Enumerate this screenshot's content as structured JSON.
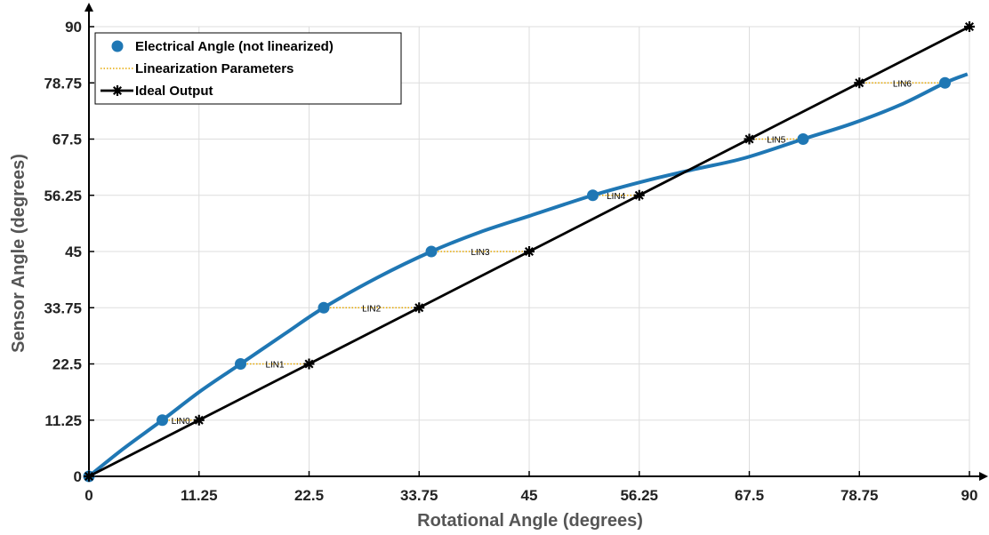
{
  "chart_data": {
    "type": "line",
    "xlabel": "Rotational Angle (degrees)",
    "ylabel": "Sensor Angle (degrees)",
    "xlim": [
      0,
      90
    ],
    "ylim": [
      0,
      90
    ],
    "xticks": [
      "0",
      "11.25",
      "22.5",
      "33.75",
      "45",
      "56.25",
      "67.5",
      "78.75",
      "90"
    ],
    "yticks": [
      "0",
      "11.25",
      "22.5",
      "33.75",
      "45",
      "56.25",
      "67.5",
      "78.75",
      "90"
    ],
    "xtick_values": [
      0,
      11.25,
      22.5,
      33.75,
      45,
      56.25,
      67.5,
      78.75,
      90
    ],
    "ytick_values": [
      0,
      11.25,
      22.5,
      33.75,
      45,
      56.25,
      67.5,
      78.75,
      90
    ],
    "grid": true,
    "legend_position": "top-left",
    "colors": {
      "electrical": "#1f77b4",
      "linearization": "#e6a700",
      "ideal": "#000000",
      "grid": "#dddddd"
    },
    "series": [
      {
        "name": "Electrical Angle (not linearized)",
        "style": "curve-with-markers",
        "x": [
          0,
          7.5,
          15.5,
          24.0,
          35.0,
          51.5,
          73.0,
          87.5
        ],
        "y": [
          0,
          11.25,
          22.5,
          33.75,
          45,
          56.25,
          67.5,
          78.75
        ],
        "curve": {
          "x": [
            0,
            3.5,
            7.5,
            11.5,
            15.5,
            20,
            24,
            29.5,
            35,
            40,
            45,
            51.5,
            57,
            62,
            67,
            73,
            78,
            83,
            87.5,
            89.8
          ],
          "y": [
            0,
            5.5,
            11.25,
            17.2,
            22.5,
            28.5,
            33.75,
            39.8,
            45,
            48.9,
            52.1,
            56.25,
            59.2,
            61.5,
            63.7,
            67.5,
            70.6,
            74.4,
            78.75,
            80.5
          ]
        }
      },
      {
        "name": "Linearization Parameters",
        "style": "dotted-segments",
        "segments": [
          {
            "label": "LIN0",
            "x0": 7.5,
            "x1": 11.25,
            "y": 11.25
          },
          {
            "label": "LIN1",
            "x0": 15.5,
            "x1": 22.5,
            "y": 22.5
          },
          {
            "label": "LIN2",
            "x0": 24.0,
            "x1": 33.75,
            "y": 33.75
          },
          {
            "label": "LIN3",
            "x0": 35.0,
            "x1": 45,
            "y": 45
          },
          {
            "label": "LIN4",
            "x0": 51.5,
            "x1": 56.25,
            "y": 56.25
          },
          {
            "label": "LIN5",
            "x0": 67.5,
            "x1": 73.0,
            "y": 67.5
          },
          {
            "label": "LIN6",
            "x0": 78.75,
            "x1": 87.5,
            "y": 78.75
          }
        ]
      },
      {
        "name": "Ideal Output",
        "style": "line-with-star-markers",
        "x": [
          0,
          11.25,
          22.5,
          33.75,
          45,
          56.25,
          67.5,
          78.75,
          90
        ],
        "y": [
          0,
          11.25,
          22.5,
          33.75,
          45,
          56.25,
          67.5,
          78.75,
          90
        ]
      }
    ]
  }
}
